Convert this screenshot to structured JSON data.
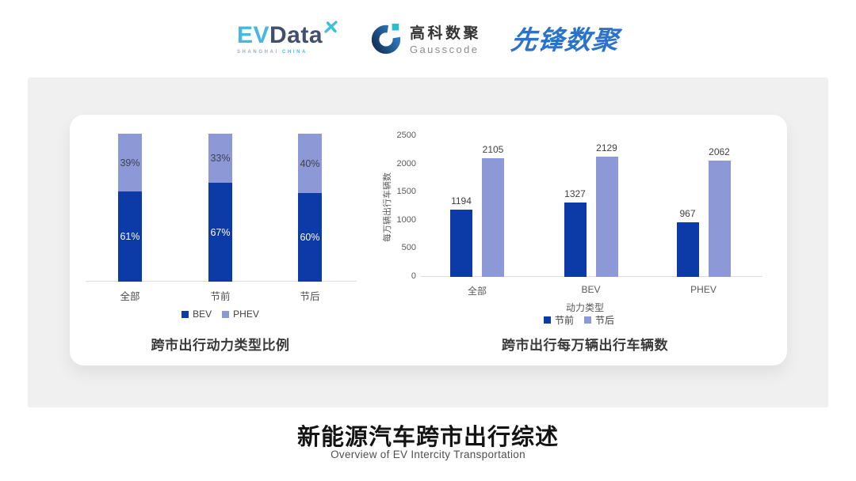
{
  "header": {
    "evdata": {
      "part1": "EV",
      "part2": "Data",
      "sub_left": "SHANGHAI",
      "sub_right": "CHINA"
    },
    "gausscode": {
      "name_cn": "高科数聚",
      "name_en": "Gausscode"
    },
    "xianfeng": {
      "name": "先锋数聚"
    }
  },
  "palette": {
    "dark_blue": "#0c3aa6",
    "light_blue": "#8c99d6",
    "axis_gray": "#dcdcdc",
    "tick_text": "#595959",
    "value_text": "#3f3f3f",
    "title_text": "#3a3a3a"
  },
  "chart_data": [
    {
      "type": "bar",
      "variant": "stacked-percent",
      "title": "跨市出行动力类型比例",
      "categories": [
        "全部",
        "节前",
        "节后"
      ],
      "series": [
        {
          "name": "BEV",
          "color": "#0c3aa6",
          "values": [
            61,
            67,
            60
          ],
          "labels": [
            "61%",
            "67%",
            "60%"
          ]
        },
        {
          "name": "PHEV",
          "color": "#8c99d6",
          "values": [
            39,
            33,
            40
          ],
          "labels": [
            "39%",
            "33%",
            "40%"
          ]
        }
      ],
      "ylim": [
        0,
        100
      ],
      "grid": false,
      "legend_position": "bottom"
    },
    {
      "type": "bar",
      "variant": "grouped",
      "title": "跨市出行每万辆出行车辆数",
      "xlabel": "动力类型",
      "ylabel": "每万辆出行车辆数",
      "categories": [
        "全部",
        "BEV",
        "PHEV"
      ],
      "series": [
        {
          "name": "节前",
          "color": "#0c3aa6",
          "values": [
            1194,
            1327,
            967
          ]
        },
        {
          "name": "节后",
          "color": "#8c99d6",
          "values": [
            2105,
            2129,
            2062
          ]
        }
      ],
      "ylim": [
        0,
        2500
      ],
      "yticks": [
        0,
        500,
        1000,
        1500,
        2000,
        2500
      ],
      "grid": false,
      "legend_position": "bottom"
    }
  ],
  "footer": {
    "title": "新能源汽车跨市出行综述",
    "subtitle": "Overview of EV Intercity Transportation"
  }
}
